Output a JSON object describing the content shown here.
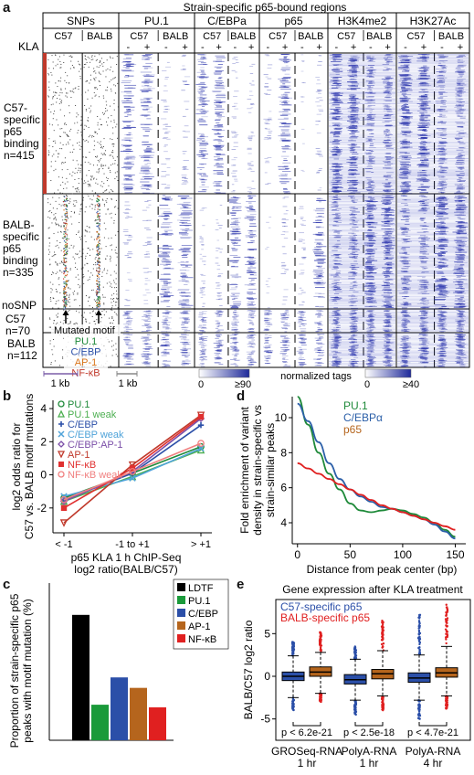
{
  "panel_labels": {
    "a": "a",
    "b": "b",
    "c": "c",
    "d": "d",
    "e": "e"
  },
  "panel_a": {
    "title": "Strain-specific p65-bound regions",
    "columns": [
      {
        "name": "SNPs",
        "left": "C57",
        "right": "BALB"
      },
      {
        "name": "PU.1",
        "left": "C57",
        "right": "BALB"
      },
      {
        "name": "C/EBPa",
        "left": "C57",
        "right": "BALB"
      },
      {
        "name": "p65",
        "left": "C57",
        "right": "BALB"
      },
      {
        "name": "H3K4me2",
        "left": "C57",
        "right": "BALB"
      },
      {
        "name": "H3K27Ac",
        "left": "C57",
        "right": "BALB"
      }
    ],
    "kla_label": "KLA",
    "kla_signs": [
      "-",
      "+",
      "-",
      "+"
    ],
    "row_groups": [
      {
        "label": "C57-\nspecific\np65\nbinding\nn=415"
      },
      {
        "label": "BALB-\nspecific\np65\nbinding\nn=335"
      },
      {
        "label": "C57\nn=70"
      },
      {
        "label": "BALB\nn=112"
      }
    ],
    "nosnp_label": "noSNP",
    "mutated_motif": "Mutated motif",
    "motif_legend": [
      {
        "name": "PU.1",
        "color": "#1f8a3a"
      },
      {
        "name": "C/EBP",
        "color": "#2b4fa8"
      },
      {
        "name": "AP-1",
        "color": "#d9751a"
      },
      {
        "name": "NF-κB",
        "color": "#c0392b"
      }
    ],
    "scale_1kb_a": "1 kb",
    "scale_1kb_b": "1 kb",
    "colorbar1": {
      "label": "normalized tags",
      "min": "0",
      "max": "≥90"
    },
    "colorbar2": {
      "min": "0",
      "max": "≥40"
    }
  },
  "chart_data": [
    {
      "panel": "b",
      "type": "line",
      "xlabel": "p65 KLA 1 h ChIP-Seq\nlog2 ratio(BALB/C57)",
      "ylabel": "log2 odds ratio for\nC57 vs. BALB motif mutations",
      "categories": [
        "< -1",
        "-1 to +1",
        "> +1"
      ],
      "ylim": [
        -3.5,
        4.5
      ],
      "yticks": [
        "-2",
        "0",
        "2",
        "4"
      ],
      "series": [
        {
          "name": "PU.1",
          "color": "#1f8a3a",
          "marker": "o",
          "values": [
            -1.4,
            0.1,
            1.7
          ]
        },
        {
          "name": "PU.1 weak",
          "color": "#4caf50",
          "marker": "^",
          "values": [
            -1.6,
            -0.1,
            1.5
          ]
        },
        {
          "name": "C/EBP",
          "color": "#2b4fa8",
          "marker": "+",
          "values": [
            -1.5,
            0.1,
            3.0
          ]
        },
        {
          "name": "C/EBP weak",
          "color": "#4fa3d9",
          "marker": "x",
          "values": [
            -1.3,
            -0.2,
            1.6
          ]
        },
        {
          "name": "C/EBP:AP-1",
          "color": "#7b4fa8",
          "marker": "D",
          "values": [
            -1.6,
            0.2,
            3.4
          ]
        },
        {
          "name": "AP-1",
          "color": "#c0392b",
          "marker": "v",
          "values": [
            -2.9,
            0.6,
            3.6
          ]
        },
        {
          "name": "NF-κB",
          "color": "#e03030",
          "marker": "s",
          "values": [
            -2.0,
            0.4,
            3.5
          ]
        },
        {
          "name": "NF-κB weak",
          "color": "#f08080",
          "marker": "o",
          "values": [
            -1.5,
            0.2,
            1.9
          ]
        }
      ]
    },
    {
      "panel": "c",
      "type": "bar",
      "ylabel": "Proportion of strain-specific p65\npeaks with motif mutation (%)",
      "categories": [
        "LDTF",
        "PU.1",
        "C/EBP",
        "AP-1",
        "NF-κB"
      ],
      "colors": [
        "#000000",
        "#1a9a3a",
        "#2b4fa8",
        "#b5651d",
        "#e02020"
      ],
      "values": [
        33.5,
        9.5,
        16.8,
        14.0,
        8.8
      ],
      "ylim": [
        0,
        42
      ]
    },
    {
      "panel": "d",
      "type": "line",
      "xlabel": "Distance from peak center (bp)",
      "ylabel": "Fold enrichment of variant\ndensity in strain-specific vs\nstrain-similar peaks",
      "xlim": [
        -5,
        160
      ],
      "ylim": [
        2.8,
        11.2
      ],
      "xticks": [
        "0",
        "50",
        "100",
        "150"
      ],
      "yticks": [
        "4",
        "6",
        "8",
        "10"
      ],
      "series": [
        {
          "name": "PU.1",
          "color": "#1f8a3a",
          "x": [
            0,
            10,
            20,
            30,
            40,
            50,
            60,
            70,
            80,
            90,
            100,
            110,
            120,
            130,
            140,
            150
          ],
          "values": [
            11.2,
            9.6,
            8.0,
            6.8,
            5.9,
            5.1,
            4.7,
            4.6,
            4.7,
            4.8,
            4.7,
            4.5,
            4.3,
            4.0,
            3.6,
            3.2
          ]
        },
        {
          "name": "C/EBPα",
          "color": "#2b5fa8",
          "x": [
            0,
            10,
            20,
            30,
            40,
            50,
            60,
            70,
            80,
            90,
            100,
            110,
            120,
            130,
            140,
            150
          ],
          "values": [
            10.8,
            9.8,
            8.6,
            7.4,
            6.5,
            5.9,
            5.5,
            5.2,
            4.9,
            4.8,
            4.6,
            4.4,
            4.2,
            3.9,
            3.5,
            3.1
          ]
        },
        {
          "name": "p65",
          "color": "#e02020",
          "x": [
            0,
            10,
            20,
            30,
            40,
            50,
            60,
            70,
            80,
            90,
            100,
            110,
            120,
            130,
            140,
            150
          ],
          "values": [
            7.4,
            7.1,
            6.8,
            6.5,
            6.2,
            5.9,
            5.6,
            5.3,
            5.0,
            4.8,
            4.6,
            4.4,
            4.2,
            4.0,
            3.8,
            3.6
          ]
        }
      ],
      "legend_colors": [
        "#1f8a3a",
        "#2b5fa8",
        "#b5651d"
      ]
    },
    {
      "panel": "e",
      "type": "box",
      "title": "Gene expression after KLA treatment",
      "ylabel": "BALB/C57 log2 ratio",
      "ylim": [
        -7.5,
        9
      ],
      "yticks": [
        "-5",
        "0",
        "5"
      ],
      "legend": [
        {
          "name": "C57-specific p65",
          "color": "#2b4fa8"
        },
        {
          "name": "BALB-specific p65",
          "color": "#e02020"
        }
      ],
      "groups": [
        {
          "label": "GROSeq-RNA\n1 hr",
          "pvalue": "p < 6.2e-21",
          "c57": {
            "q1": -0.5,
            "median": 0.0,
            "q3": 0.5,
            "whisk_lo": -2.5,
            "whisk_hi": 2.4,
            "out_lo": -4.0,
            "out_hi": 4.2
          },
          "balb": {
            "q1": 0.0,
            "median": 0.5,
            "q3": 1.1,
            "whisk_lo": -2.0,
            "whisk_hi": 2.8,
            "out_lo": -3.0,
            "out_hi": 5.2
          }
        },
        {
          "label": "PolyA-RNA\n1 hr",
          "pvalue": "p < 2.5e-18",
          "c57": {
            "q1": -0.9,
            "median": -0.4,
            "q3": 0.2,
            "whisk_lo": -2.8,
            "whisk_hi": 2.0,
            "out_lo": -4.5,
            "out_hi": 3.5
          },
          "balb": {
            "q1": -0.3,
            "median": 0.3,
            "q3": 0.8,
            "whisk_lo": -2.3,
            "whisk_hi": 3.0,
            "out_lo": -4.0,
            "out_hi": 6.6
          }
        },
        {
          "label": "PolyA-RNA\n4 hr",
          "pvalue": "p < 4.7e-21",
          "c57": {
            "q1": -0.7,
            "median": -0.2,
            "q3": 0.4,
            "whisk_lo": -2.8,
            "whisk_hi": 2.5,
            "out_lo": -5.0,
            "out_hi": 7.2
          },
          "balb": {
            "q1-": 0,
            "q1": -0.1,
            "median": 0.4,
            "q3": 1.0,
            "whisk_lo": -2.3,
            "whisk_hi": 3.5,
            "out_lo": -3.8,
            "out_hi": 8.5
          }
        }
      ]
    }
  ]
}
